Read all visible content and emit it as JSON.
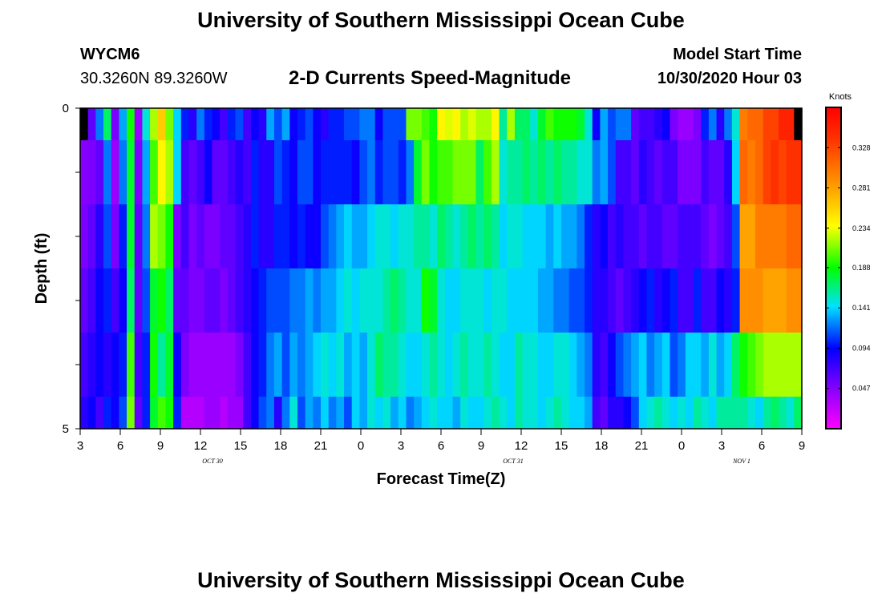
{
  "page": {
    "title_top": "University of Southern Mississippi Ocean Cube",
    "title_bottom": "University of Southern Mississippi Ocean Cube",
    "station_id": "WYCM6",
    "coords": "30.3260N 89.3260W",
    "chart_title": "2-D Currents Speed-Magnitude",
    "model_start_label": "Model Start Time",
    "model_start_value": "10/30/2020 Hour 03"
  },
  "chart_data": {
    "type": "heatmap",
    "title": "2-D Currents Speed-Magnitude",
    "xlabel": "Forecast Time(Z)",
    "ylabel": "Depth (ft)",
    "x_ticks": [
      "3",
      "6",
      "9",
      "12",
      "15",
      "18",
      "21",
      "0",
      "3",
      "6",
      "9",
      "12",
      "15",
      "18",
      "21",
      "0",
      "3",
      "6",
      "9"
    ],
    "date_labels": [
      {
        "text": "OCT 30",
        "tick_index": 3.3
      },
      {
        "text": "OCT 31",
        "tick_index": 10.8
      },
      {
        "text": "NOV 1",
        "tick_index": 16.5
      }
    ],
    "y_ticks": [
      "0",
      "5"
    ],
    "y_range": [
      0,
      5
    ],
    "x_range_hours": [
      0,
      54
    ],
    "colorbar": {
      "unit": "Knots",
      "min": 0.0,
      "max": 0.375,
      "labels": [
        0.047,
        0.094,
        0.141,
        0.188,
        0.234,
        0.281,
        0.328
      ]
    },
    "layer_depths_ft": [
      0.0,
      0.5,
      1.5,
      2.5,
      3.5,
      4.5,
      5.0
    ],
    "speed_knots_by_layer": [
      [
        0.375,
        0.06,
        0.12,
        0.17,
        0.05,
        0.13,
        0.19,
        0.04,
        0.15,
        0.22,
        0.26,
        0.21,
        0.14,
        0.1,
        0.08,
        0.12,
        0.1,
        0.09,
        0.07,
        0.1,
        0.11,
        0.07,
        0.09,
        0.08,
        0.13,
        0.11,
        0.13,
        0.09,
        0.1,
        0.11,
        0.09,
        0.08,
        0.1,
        0.1,
        0.11,
        0.11,
        0.12,
        0.12,
        0.09,
        0.11,
        0.11,
        0.11,
        0.21,
        0.21,
        0.2,
        0.19,
        0.24,
        0.23,
        0.24,
        0.22,
        0.23,
        0.22,
        0.22,
        0.24,
        0.16,
        0.22,
        0.17,
        0.17,
        0.15,
        0.18,
        0.2,
        0.19,
        0.19,
        0.19,
        0.18,
        0.15,
        0.09,
        0.13,
        0.11,
        0.12,
        0.12,
        0.06,
        0.07,
        0.07,
        0.08,
        0.09,
        0.05,
        0.04,
        0.04,
        0.05,
        0.1,
        0.12,
        0.08,
        0.12,
        0.15,
        0.3,
        0.31,
        0.31,
        0.33,
        0.33,
        0.35,
        0.35,
        0.375
      ],
      [
        0.047,
        0.05,
        0.06,
        0.12,
        0.04,
        0.12,
        0.18,
        0.05,
        0.13,
        0.2,
        0.24,
        0.22,
        0.14,
        0.07,
        0.06,
        0.07,
        0.09,
        0.06,
        0.06,
        0.07,
        0.08,
        0.07,
        0.1,
        0.08,
        0.08,
        0.11,
        0.1,
        0.09,
        0.11,
        0.11,
        0.09,
        0.1,
        0.1,
        0.1,
        0.1,
        0.09,
        0.11,
        0.12,
        0.1,
        0.11,
        0.11,
        0.1,
        0.12,
        0.18,
        0.21,
        0.19,
        0.2,
        0.2,
        0.21,
        0.21,
        0.21,
        0.17,
        0.2,
        0.22,
        0.15,
        0.16,
        0.16,
        0.17,
        0.16,
        0.17,
        0.16,
        0.17,
        0.16,
        0.16,
        0.15,
        0.15,
        0.12,
        0.13,
        0.11,
        0.07,
        0.07,
        0.06,
        0.08,
        0.07,
        0.06,
        0.07,
        0.07,
        0.05,
        0.05,
        0.05,
        0.07,
        0.06,
        0.06,
        0.08,
        0.14,
        0.31,
        0.3,
        0.31,
        0.33,
        0.34,
        0.33,
        0.34,
        0.34
      ],
      [
        0.05,
        0.06,
        0.08,
        0.11,
        0.05,
        0.1,
        0.18,
        0.06,
        0.12,
        0.22,
        0.21,
        0.19,
        0.05,
        0.07,
        0.05,
        0.06,
        0.05,
        0.05,
        0.06,
        0.06,
        0.07,
        0.08,
        0.1,
        0.08,
        0.08,
        0.1,
        0.1,
        0.09,
        0.1,
        0.09,
        0.09,
        0.11,
        0.12,
        0.13,
        0.14,
        0.13,
        0.13,
        0.14,
        0.15,
        0.15,
        0.14,
        0.15,
        0.15,
        0.16,
        0.16,
        0.15,
        0.17,
        0.16,
        0.15,
        0.16,
        0.17,
        0.16,
        0.17,
        0.16,
        0.14,
        0.15,
        0.15,
        0.14,
        0.14,
        0.14,
        0.13,
        0.14,
        0.13,
        0.13,
        0.12,
        0.1,
        0.08,
        0.09,
        0.07,
        0.08,
        0.07,
        0.07,
        0.06,
        0.07,
        0.07,
        0.06,
        0.06,
        0.07,
        0.07,
        0.07,
        0.06,
        0.05,
        0.06,
        0.07,
        0.11,
        0.28,
        0.28,
        0.3,
        0.3,
        0.3,
        0.3,
        0.31,
        0.31
      ],
      [
        0.06,
        0.07,
        0.09,
        0.1,
        0.07,
        0.09,
        0.17,
        0.06,
        0.11,
        0.18,
        0.19,
        0.17,
        0.06,
        0.06,
        0.05,
        0.05,
        0.06,
        0.06,
        0.05,
        0.06,
        0.07,
        0.08,
        0.09,
        0.1,
        0.11,
        0.11,
        0.11,
        0.12,
        0.12,
        0.13,
        0.12,
        0.13,
        0.13,
        0.14,
        0.15,
        0.14,
        0.15,
        0.15,
        0.15,
        0.16,
        0.17,
        0.16,
        0.15,
        0.15,
        0.19,
        0.18,
        0.15,
        0.14,
        0.14,
        0.15,
        0.15,
        0.15,
        0.14,
        0.15,
        0.15,
        0.14,
        0.14,
        0.14,
        0.14,
        0.13,
        0.13,
        0.12,
        0.12,
        0.11,
        0.11,
        0.1,
        0.08,
        0.08,
        0.07,
        0.06,
        0.07,
        0.08,
        0.09,
        0.1,
        0.08,
        0.09,
        0.1,
        0.07,
        0.07,
        0.1,
        0.07,
        0.07,
        0.09,
        0.08,
        0.1,
        0.29,
        0.29,
        0.29,
        0.28,
        0.28,
        0.28,
        0.29,
        0.29
      ],
      [
        0.07,
        0.08,
        0.09,
        0.08,
        0.09,
        0.1,
        0.2,
        0.07,
        0.1,
        0.19,
        0.16,
        0.18,
        0.09,
        0.05,
        0.04,
        0.04,
        0.04,
        0.04,
        0.04,
        0.04,
        0.05,
        0.07,
        0.09,
        0.1,
        0.12,
        0.13,
        0.11,
        0.13,
        0.12,
        0.13,
        0.14,
        0.15,
        0.14,
        0.15,
        0.13,
        0.14,
        0.13,
        0.15,
        0.17,
        0.16,
        0.16,
        0.15,
        0.14,
        0.14,
        0.15,
        0.16,
        0.15,
        0.14,
        0.15,
        0.16,
        0.15,
        0.15,
        0.16,
        0.15,
        0.14,
        0.14,
        0.16,
        0.15,
        0.15,
        0.14,
        0.14,
        0.15,
        0.15,
        0.14,
        0.13,
        0.12,
        0.08,
        0.07,
        0.09,
        0.11,
        0.12,
        0.13,
        0.14,
        0.12,
        0.13,
        0.14,
        0.11,
        0.12,
        0.14,
        0.14,
        0.13,
        0.15,
        0.13,
        0.14,
        0.17,
        0.19,
        0.2,
        0.21,
        0.22,
        0.22,
        0.22,
        0.22,
        0.22
      ],
      [
        0.08,
        0.09,
        0.07,
        0.1,
        0.09,
        0.11,
        0.21,
        0.06,
        0.1,
        0.18,
        0.2,
        0.19,
        0.1,
        0.03,
        0.03,
        0.03,
        0.04,
        0.04,
        0.03,
        0.04,
        0.04,
        0.07,
        0.09,
        0.11,
        0.12,
        0.08,
        0.12,
        0.15,
        0.11,
        0.13,
        0.12,
        0.14,
        0.12,
        0.13,
        0.11,
        0.14,
        0.13,
        0.15,
        0.14,
        0.15,
        0.13,
        0.14,
        0.12,
        0.13,
        0.14,
        0.15,
        0.14,
        0.14,
        0.13,
        0.15,
        0.14,
        0.14,
        0.15,
        0.16,
        0.15,
        0.14,
        0.16,
        0.15,
        0.15,
        0.14,
        0.15,
        0.16,
        0.15,
        0.14,
        0.14,
        0.13,
        0.07,
        0.06,
        0.08,
        0.08,
        0.09,
        0.11,
        0.14,
        0.15,
        0.16,
        0.15,
        0.14,
        0.15,
        0.14,
        0.16,
        0.15,
        0.14,
        0.16,
        0.16,
        0.16,
        0.16,
        0.15,
        0.14,
        0.16,
        0.17,
        0.16,
        0.15,
        0.17
      ]
    ]
  }
}
